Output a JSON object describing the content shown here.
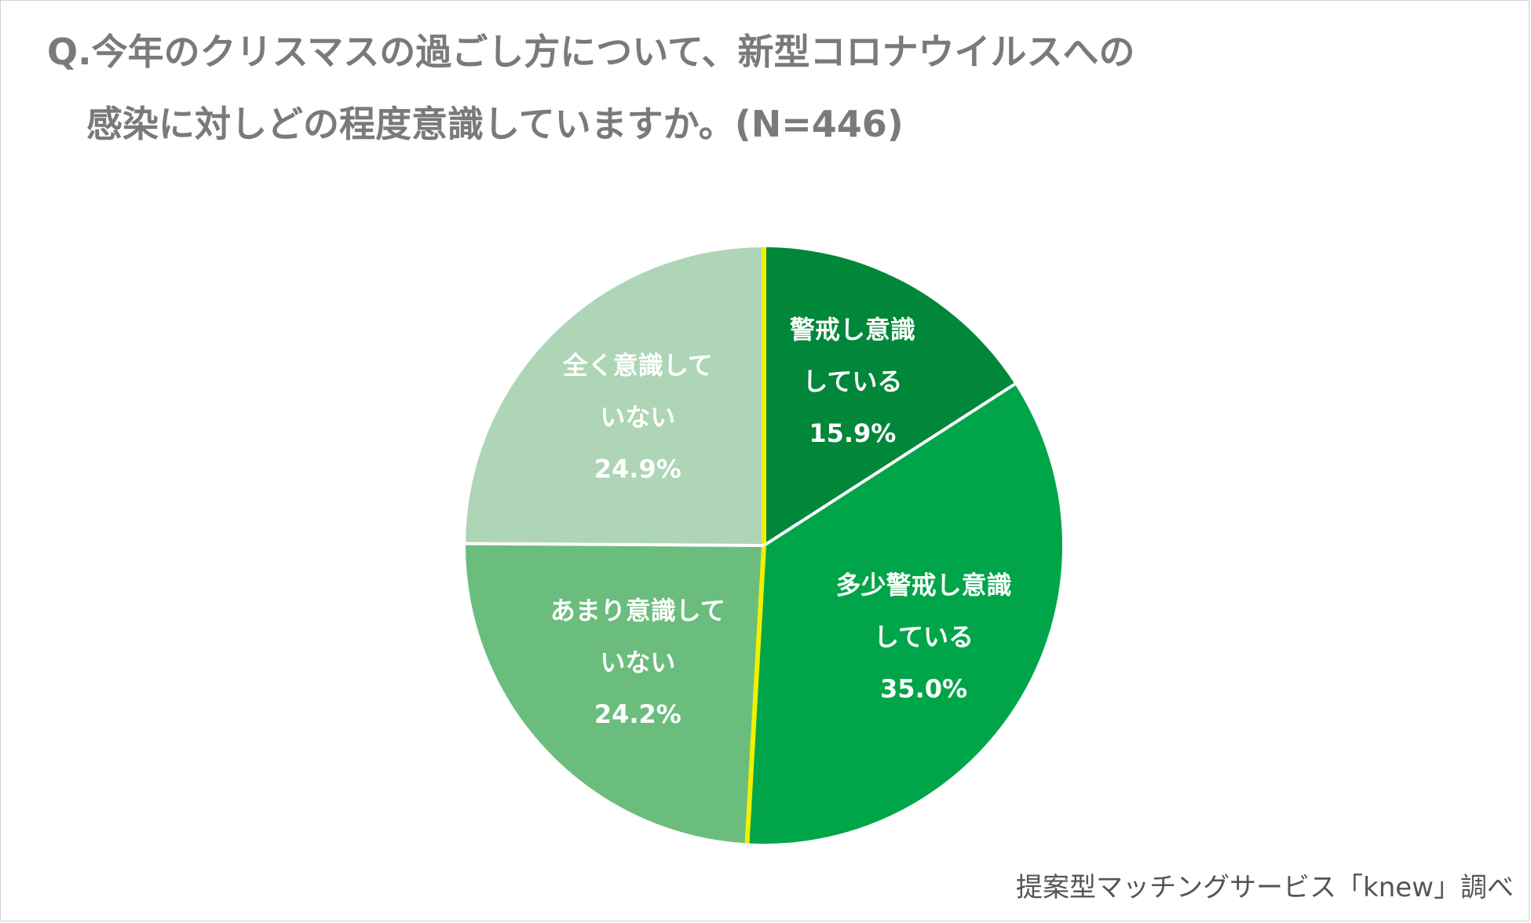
{
  "title": {
    "line1": "Q.今年のクリスマスの過ごし方について、新型コロナウイルスへの",
    "line2": "感染に対しどの程度意識していますか。(N=446)"
  },
  "source": "提案型マッチングサービス「knew」調べ",
  "chart_data": {
    "type": "pie",
    "start_angle_deg": 0,
    "direction": "clockwise",
    "slices": [
      {
        "name": "警戒し意識している",
        "label_lines": [
          "警戒し意識",
          "している"
        ],
        "value": 15.9,
        "value_label": "15.9%",
        "color": "#00873a"
      },
      {
        "name": "多少警戒し意識している",
        "label_lines": [
          "多少警戒し意識",
          "している"
        ],
        "value": 35.0,
        "value_label": "35.0%",
        "color": "#00a54a"
      },
      {
        "name": "あまり意識していない",
        "label_lines": [
          "あまり意識して",
          "いない"
        ],
        "value": 24.2,
        "value_label": "24.2%",
        "color": "#6bbd7e"
      },
      {
        "name": "全く意識していない",
        "label_lines": [
          "全く意識して",
          "いない"
        ],
        "value": 24.9,
        "value_label": "24.9%",
        "color": "#add5b6"
      }
    ],
    "divider_color": "#ffffff",
    "highlight_divider_color": "#f0f000"
  }
}
